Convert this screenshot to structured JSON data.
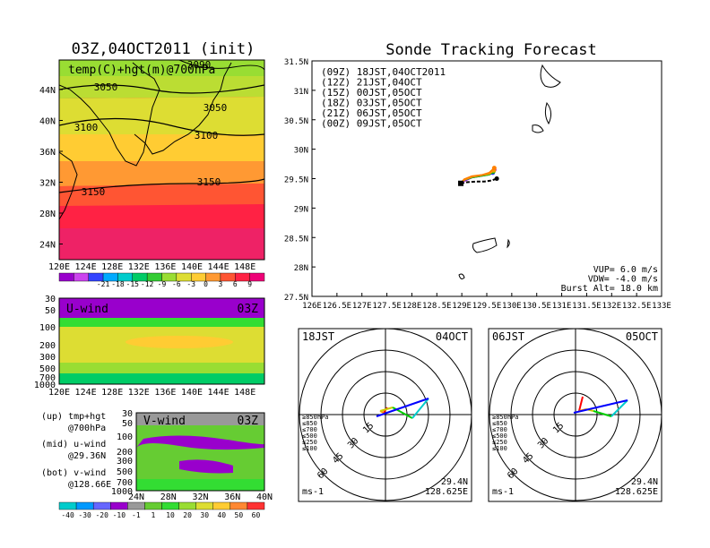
{
  "left_title": "03Z,04OCT2011 (init)",
  "right_title": "Sonde Tracking Forecast",
  "colors": {
    "series": [
      "#000000",
      "#cc00cc",
      "#3333ff",
      "#00bb00",
      "#f0a000",
      "#ff8000"
    ],
    "temp_scale": [
      "#9900cc",
      "#cc44ee",
      "#3344ff",
      "#00aaff",
      "#00cccc",
      "#00cc66",
      "#33cc33",
      "#99dd33",
      "#dddd33",
      "#ffcc33",
      "#ff9933",
      "#ff5533",
      "#ff2244",
      "#ee0077"
    ],
    "wind_scale": [
      "#00cccc",
      "#0099ff",
      "#6666ff",
      "#9900cc",
      "#999999",
      "#66cc33",
      "#33dd33",
      "#99dd33",
      "#dddd33",
      "#ffcc33",
      "#ff8833",
      "#ff3333"
    ]
  },
  "temp_map": {
    "label": "temp(C)+hgt(m)@700hPa",
    "lat_ticks": [
      "44N",
      "40N",
      "36N",
      "32N",
      "28N",
      "24N"
    ],
    "lon_ticks": [
      "120E",
      "124E",
      "128E",
      "132E",
      "136E",
      "140E",
      "144E",
      "148E"
    ],
    "contours": [
      "3090",
      "3050",
      "3050",
      "3100",
      "3100",
      "3150",
      "3150"
    ],
    "colorbar": [
      "-21",
      "-18",
      "-15",
      "-12",
      "-9",
      "-6",
      "-3",
      "0",
      "3",
      "6",
      "9"
    ]
  },
  "u_wind": {
    "label": "U-wind",
    "time": "03Z",
    "p_ticks": [
      "30",
      "50",
      "100",
      "200",
      "300",
      "500",
      "700",
      "1000"
    ],
    "lon_ticks": [
      "120E",
      "124E",
      "128E",
      "132E",
      "136E",
      "140E",
      "144E",
      "148E"
    ]
  },
  "v_wind": {
    "label": "V-wind",
    "time": "03Z",
    "p_ticks": [
      "30",
      "50",
      "100",
      "200",
      "300",
      "500",
      "700",
      "1000"
    ],
    "lat_ticks": [
      "24N",
      "28N",
      "32N",
      "36N",
      "40N"
    ],
    "colorbar": [
      "-40",
      "-30",
      "-20",
      "-10",
      "-1",
      "1",
      "10",
      "20",
      "30",
      "40",
      "50",
      "60"
    ]
  },
  "legend_notes": [
    "(up) tmp+hgt",
    "@700hPa",
    "(mid) u-wind",
    "@29.36N",
    "(bot) v-wind",
    "@128.66E"
  ],
  "chart_data": [
    {
      "type": "line",
      "title": "Sonde Tracking Forecast",
      "xlim": [
        126,
        133
      ],
      "ylim": [
        27.5,
        31.5
      ],
      "x_ticks": [
        "126E",
        "126.5E",
        "127E",
        "127.5E",
        "128E",
        "128.5E",
        "129E",
        "129.5E",
        "130E",
        "130.5E",
        "131E",
        "131.5E",
        "132E",
        "132.5E",
        "133E"
      ],
      "y_ticks": [
        "31.5N",
        "31N",
        "30.5N",
        "30N",
        "29.5N",
        "29N",
        "28.5N",
        "28N",
        "27.5N"
      ],
      "series": [
        {
          "name": "(09Z) 18JST,04OCT2011",
          "x": [
            128.98,
            129.1,
            129.3,
            129.45,
            129.6,
            129.7
          ],
          "y": [
            29.42,
            29.44,
            29.45,
            29.45,
            29.47,
            29.5
          ]
        },
        {
          "name": "(12Z) 21JST,04OCT",
          "x": [
            128.98,
            129.05,
            129.2,
            129.4,
            129.55,
            129.65
          ],
          "y": [
            29.42,
            29.46,
            29.52,
            29.55,
            29.58,
            29.65
          ]
        },
        {
          "name": "(15Z) 00JST,05OCT",
          "x": [
            128.98,
            129.05,
            129.2,
            129.4,
            129.55,
            129.62
          ],
          "y": [
            29.42,
            29.47,
            29.52,
            29.55,
            29.57,
            29.6
          ]
        },
        {
          "name": "(18Z) 03JST,05OCT",
          "x": [
            128.98,
            129.05,
            129.2,
            129.4,
            129.55,
            129.63
          ],
          "y": [
            29.42,
            29.48,
            29.52,
            29.55,
            29.57,
            29.62
          ]
        },
        {
          "name": "(21Z) 06JST,05OCT",
          "x": [
            128.98,
            129.05,
            129.2,
            129.4,
            129.55,
            129.64
          ],
          "y": [
            29.42,
            29.48,
            29.53,
            29.56,
            29.58,
            29.64
          ]
        },
        {
          "name": "(00Z) 09JST,05OCT",
          "x": [
            128.98,
            129.05,
            129.2,
            129.4,
            129.55,
            129.65
          ],
          "y": [
            29.42,
            29.49,
            29.54,
            29.56,
            29.6,
            29.68
          ]
        }
      ],
      "annotations": [
        "VUP= 6.0 m/s",
        "VDW= -4.0 m/s",
        "Burst Alt= 18.0 km"
      ]
    }
  ],
  "hodographs": [
    {
      "time": "18JST",
      "date": "04OCT",
      "lat": "29.4N",
      "lon": "128.625E",
      "unit": "ms-1",
      "ring_labels": [
        "15",
        "30",
        "45",
        "60"
      ],
      "levels": [
        "≥850hPa",
        "≤850",
        "≤700",
        "≤500",
        "≤250",
        "≤100"
      ],
      "level_colors": [
        "#ff0000",
        "#ff8800",
        "#cccc00",
        "#00cc00",
        "#00cccc",
        "#0000ff"
      ]
    },
    {
      "time": "06JST",
      "date": "05OCT",
      "lat": "29.4N",
      "lon": "128.625E",
      "unit": "ms-1",
      "ring_labels": [
        "15",
        "30",
        "45",
        "60"
      ],
      "levels": [
        "≥850hPa",
        "≤850",
        "≤700",
        "≤500",
        "≤250",
        "≤100"
      ],
      "level_colors": [
        "#ff0000",
        "#ff8800",
        "#cccc00",
        "#00cc00",
        "#00cccc",
        "#0000ff"
      ]
    }
  ]
}
